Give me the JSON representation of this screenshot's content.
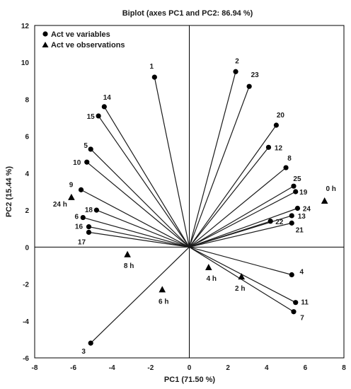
{
  "chart_data": {
    "type": "scatter",
    "title": "Biplot (axes PC1 and PC2: 86.94 %)",
    "xlabel": "PC1 (71.50 %)",
    "ylabel": "PC2 (15.44 %)",
    "xlim": [
      -8,
      8
    ],
    "ylim": [
      -6,
      12
    ],
    "xticks": [
      -8,
      -6,
      -4,
      -2,
      0,
      2,
      4,
      6,
      8
    ],
    "yticks": [
      -6,
      -4,
      -2,
      0,
      2,
      4,
      6,
      8,
      10,
      12
    ],
    "grid": false,
    "legend_position": "top-left",
    "series": [
      {
        "name": "Act ve variables",
        "marker": "circle",
        "vectors_from_origin": true,
        "points": [
          {
            "label": "1",
            "x": -1.8,
            "y": 9.2
          },
          {
            "label": "2",
            "x": 2.4,
            "y": 9.5
          },
          {
            "label": "23",
            "x": 3.1,
            "y": 8.7
          },
          {
            "label": "14",
            "x": -4.4,
            "y": 7.6
          },
          {
            "label": "15",
            "x": -4.7,
            "y": 7.1
          },
          {
            "label": "20",
            "x": 4.5,
            "y": 6.6
          },
          {
            "label": "12",
            "x": 4.1,
            "y": 5.4
          },
          {
            "label": "5",
            "x": -5.1,
            "y": 5.3
          },
          {
            "label": "10",
            "x": -5.3,
            "y": 4.6
          },
          {
            "label": "8",
            "x": 5.0,
            "y": 4.3
          },
          {
            "label": "25",
            "x": 5.4,
            "y": 3.3
          },
          {
            "label": "19",
            "x": 5.5,
            "y": 3.0
          },
          {
            "label": "9",
            "x": -5.6,
            "y": 3.1
          },
          {
            "label": "24",
            "x": 5.6,
            "y": 2.1
          },
          {
            "label": "18",
            "x": -4.8,
            "y": 2.0
          },
          {
            "label": "13",
            "x": 5.3,
            "y": 1.7
          },
          {
            "label": "6",
            "x": -5.5,
            "y": 1.6
          },
          {
            "label": "22",
            "x": 4.2,
            "y": 1.4
          },
          {
            "label": "21",
            "x": 5.3,
            "y": 1.3
          },
          {
            "label": "16",
            "x": -5.2,
            "y": 1.1
          },
          {
            "label": "17",
            "x": -5.2,
            "y": 0.8
          },
          {
            "label": "4",
            "x": 5.3,
            "y": -1.5
          },
          {
            "label": "11",
            "x": 5.5,
            "y": -3.0
          },
          {
            "label": "7",
            "x": 5.4,
            "y": -3.5
          },
          {
            "label": "3",
            "x": -5.1,
            "y": -5.2
          }
        ]
      },
      {
        "name": "Act ve observations",
        "marker": "triangle",
        "vectors_from_origin": false,
        "points": [
          {
            "label": "0 h",
            "x": 7.0,
            "y": 2.5
          },
          {
            "label": "24 h",
            "x": -6.1,
            "y": 2.7
          },
          {
            "label": "8 h",
            "x": -3.2,
            "y": -0.4
          },
          {
            "label": "4 h",
            "x": 1.0,
            "y": -1.1
          },
          {
            "label": "2 h",
            "x": 2.7,
            "y": -1.6
          },
          {
            "label": "6 h",
            "x": -1.4,
            "y": -2.3
          }
        ]
      }
    ]
  }
}
